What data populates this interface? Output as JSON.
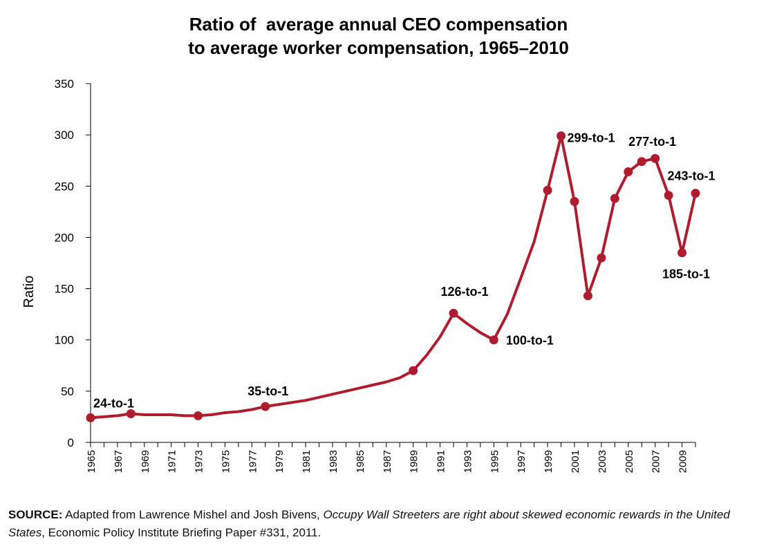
{
  "chart_data": {
    "type": "line",
    "title_line1": "Ratio of  average annual CEO compensation",
    "title_line2": "to average worker compensation, 1965–2010",
    "xlabel": "",
    "ylabel": "Ratio",
    "ylim": [
      0,
      350
    ],
    "xlim": [
      1965,
      2010
    ],
    "yticks": [
      0,
      50,
      100,
      150,
      200,
      250,
      300,
      350
    ],
    "xticks": [
      1965,
      1967,
      1969,
      1971,
      1973,
      1975,
      1977,
      1979,
      1981,
      1983,
      1985,
      1987,
      1989,
      1991,
      1993,
      1995,
      1997,
      1999,
      2001,
      2003,
      2005,
      2007,
      2009
    ],
    "grid": false,
    "line_color": "#b01c2e",
    "series": [
      {
        "x": [
          1965,
          1966,
          1967,
          1968,
          1969,
          1970,
          1971,
          1972,
          1973,
          1974,
          1975,
          1976,
          1977,
          1978,
          1979,
          1980,
          1981,
          1982,
          1983,
          1984,
          1985,
          1986,
          1987,
          1988,
          1989,
          1990,
          1991,
          1992,
          1993,
          1994,
          1995,
          1996,
          1997,
          1998,
          1999,
          2000,
          2001,
          2002,
          2003,
          2004,
          2005,
          2006,
          2007,
          2008,
          2009,
          2010
        ],
        "y": [
          24,
          25,
          26,
          28,
          27,
          27,
          27,
          26,
          26,
          27,
          29,
          30,
          32,
          35,
          37,
          39,
          41,
          44,
          47,
          50,
          53,
          56,
          59,
          63,
          70,
          85,
          103,
          126,
          116,
          107,
          100,
          125,
          160,
          196,
          246,
          299,
          235,
          143,
          180,
          238,
          264,
          274,
          277,
          241,
          185,
          243
        ]
      }
    ],
    "markers_x": [
      1965,
      1968,
      1973,
      1978,
      1989,
      1992,
      1995,
      1999,
      2000,
      2001,
      2002,
      2003,
      2004,
      2005,
      2006,
      2007,
      2008,
      2009,
      2010
    ],
    "annotations": [
      {
        "text": "24-to-1",
        "x": 1965,
        "y": 24
      },
      {
        "text": "35-to-1",
        "x": 1978,
        "y": 35
      },
      {
        "text": "126-to-1",
        "x": 1992,
        "y": 126
      },
      {
        "text": "100-to-1",
        "x": 1995,
        "y": 100
      },
      {
        "text": "299-to-1",
        "x": 2000,
        "y": 299
      },
      {
        "text": "277-to-1",
        "x": 2007,
        "y": 277
      },
      {
        "text": "243-to-1",
        "x": 2010,
        "y": 243
      },
      {
        "text": "185-to-1",
        "x": 2009,
        "y": 185
      }
    ]
  },
  "source": {
    "label": "SOURCE:",
    "text_part1": " Adapted from Lawrence Mishel and Josh Bivens, ",
    "italic_title": "Occupy Wall Streeters are right about skewed economic rewards in the United States",
    "text_part2": ", Economic Policy Institute Briefing Paper #331, 2011."
  }
}
